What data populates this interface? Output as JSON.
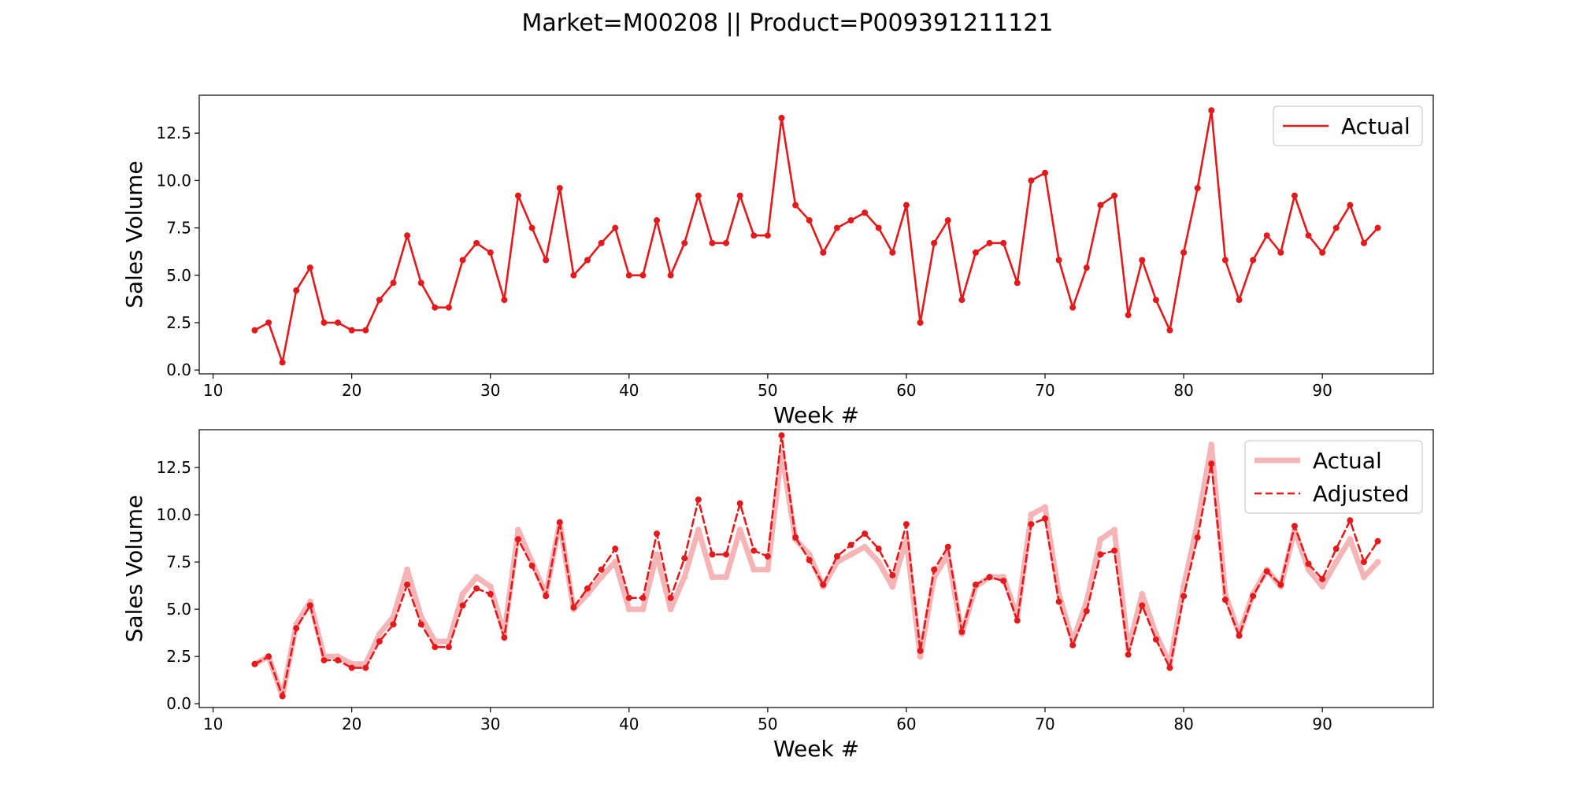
{
  "title": "Market=M00208 || Product=P009391211121",
  "colors": {
    "actual": "#e31a1c",
    "actual_faded": "#f5b5b7",
    "adjusted": "#e31a1c"
  },
  "chart_data": [
    {
      "type": "line",
      "xlabel": "Week #",
      "ylabel": "Sales Volume",
      "xlim": [
        9,
        98
      ],
      "ylim": [
        -0.2,
        14.5
      ],
      "xticks": [
        10,
        20,
        30,
        40,
        50,
        60,
        70,
        80,
        90
      ],
      "yticks": [
        0.0,
        2.5,
        5.0,
        7.5,
        10.0,
        12.5
      ],
      "xtick_labels": [
        "10",
        "20",
        "30",
        "40",
        "50",
        "60",
        "70",
        "80",
        "90"
      ],
      "ytick_labels": [
        "0.0",
        "2.5",
        "5.0",
        "7.5",
        "10.0",
        "12.5"
      ],
      "legend": "top-right",
      "x": [
        13,
        14,
        15,
        16,
        17,
        18,
        19,
        20,
        21,
        22,
        23,
        24,
        25,
        26,
        27,
        28,
        29,
        30,
        31,
        32,
        33,
        34,
        35,
        36,
        37,
        38,
        39,
        40,
        41,
        42,
        43,
        44,
        45,
        46,
        47,
        48,
        49,
        50,
        51,
        52,
        53,
        54,
        55,
        56,
        57,
        58,
        59,
        60,
        61,
        62,
        63,
        64,
        65,
        66,
        67,
        68,
        69,
        70,
        71,
        72,
        73,
        74,
        75,
        76,
        77,
        78,
        79,
        80,
        81,
        82,
        83,
        84,
        85,
        86,
        87,
        88,
        89,
        90,
        91,
        92,
        93,
        94
      ],
      "series": [
        {
          "name": "Actual",
          "style": "solid",
          "values": [
            2.1,
            2.5,
            0.4,
            4.2,
            5.4,
            2.5,
            2.5,
            2.1,
            2.1,
            3.7,
            4.6,
            7.1,
            4.6,
            3.3,
            3.3,
            5.8,
            6.7,
            6.2,
            3.7,
            9.2,
            7.5,
            5.8,
            9.6,
            5.0,
            5.8,
            6.7,
            7.5,
            5.0,
            5.0,
            7.9,
            5.0,
            6.7,
            9.2,
            6.7,
            6.7,
            9.2,
            7.1,
            7.1,
            13.3,
            8.7,
            7.9,
            6.2,
            7.5,
            7.9,
            8.3,
            7.5,
            6.2,
            8.7,
            2.5,
            6.7,
            7.9,
            3.7,
            6.2,
            6.7,
            6.7,
            4.6,
            10.0,
            10.4,
            5.8,
            3.3,
            5.4,
            8.7,
            9.2,
            2.9,
            5.8,
            3.7,
            2.1,
            6.2,
            9.6,
            13.7,
            5.8,
            3.7,
            5.8,
            7.1,
            6.2,
            9.2,
            7.1,
            6.2,
            7.5,
            8.7,
            6.7,
            7.5
          ]
        }
      ]
    },
    {
      "type": "line",
      "xlabel": "Week #",
      "ylabel": "Sales Volume",
      "xlim": [
        9,
        98
      ],
      "ylim": [
        -0.2,
        14.5
      ],
      "xticks": [
        10,
        20,
        30,
        40,
        50,
        60,
        70,
        80,
        90
      ],
      "yticks": [
        0.0,
        2.5,
        5.0,
        7.5,
        10.0,
        12.5
      ],
      "xtick_labels": [
        "10",
        "20",
        "30",
        "40",
        "50",
        "60",
        "70",
        "80",
        "90"
      ],
      "ytick_labels": [
        "0.0",
        "2.5",
        "5.0",
        "7.5",
        "10.0",
        "12.5"
      ],
      "legend": "top-right",
      "x": [
        13,
        14,
        15,
        16,
        17,
        18,
        19,
        20,
        21,
        22,
        23,
        24,
        25,
        26,
        27,
        28,
        29,
        30,
        31,
        32,
        33,
        34,
        35,
        36,
        37,
        38,
        39,
        40,
        41,
        42,
        43,
        44,
        45,
        46,
        47,
        48,
        49,
        50,
        51,
        52,
        53,
        54,
        55,
        56,
        57,
        58,
        59,
        60,
        61,
        62,
        63,
        64,
        65,
        66,
        67,
        68,
        69,
        70,
        71,
        72,
        73,
        74,
        75,
        76,
        77,
        78,
        79,
        80,
        81,
        82,
        83,
        84,
        85,
        86,
        87,
        88,
        89,
        90,
        91,
        92,
        93,
        94
      ],
      "series": [
        {
          "name": "Actual",
          "style": "solid-faded",
          "values": [
            2.1,
            2.5,
            0.4,
            4.2,
            5.4,
            2.5,
            2.5,
            2.1,
            2.1,
            3.7,
            4.6,
            7.1,
            4.6,
            3.3,
            3.3,
            5.8,
            6.7,
            6.2,
            3.7,
            9.2,
            7.5,
            5.8,
            9.6,
            5.0,
            5.8,
            6.7,
            7.5,
            5.0,
            5.0,
            7.9,
            5.0,
            6.7,
            9.2,
            6.7,
            6.7,
            9.2,
            7.1,
            7.1,
            13.3,
            8.7,
            7.9,
            6.2,
            7.5,
            7.9,
            8.3,
            7.5,
            6.2,
            8.7,
            2.5,
            6.7,
            7.9,
            3.7,
            6.2,
            6.7,
            6.7,
            4.6,
            10.0,
            10.4,
            5.8,
            3.3,
            5.4,
            8.7,
            9.2,
            2.9,
            5.8,
            3.7,
            2.1,
            6.2,
            9.6,
            13.7,
            5.8,
            3.7,
            5.8,
            7.1,
            6.2,
            9.2,
            7.1,
            6.2,
            7.5,
            8.7,
            6.7,
            7.5
          ]
        },
        {
          "name": "Adjusted",
          "style": "dashed",
          "values": [
            2.1,
            2.5,
            0.4,
            4.0,
            5.2,
            2.3,
            2.3,
            1.9,
            1.9,
            3.3,
            4.2,
            6.3,
            4.2,
            3.0,
            3.0,
            5.2,
            6.1,
            5.8,
            3.5,
            8.7,
            7.3,
            5.7,
            9.6,
            5.1,
            6.1,
            7.1,
            8.2,
            5.6,
            5.6,
            9.0,
            5.6,
            7.7,
            10.8,
            7.9,
            7.9,
            10.6,
            8.1,
            7.8,
            14.2,
            8.8,
            7.6,
            6.3,
            7.8,
            8.4,
            9.0,
            8.2,
            6.8,
            9.5,
            2.8,
            7.1,
            8.3,
            3.8,
            6.3,
            6.7,
            6.5,
            4.4,
            9.5,
            9.8,
            5.4,
            3.1,
            4.9,
            7.9,
            8.1,
            2.6,
            5.2,
            3.4,
            1.9,
            5.7,
            8.8,
            12.7,
            5.5,
            3.6,
            5.7,
            7.0,
            6.3,
            9.4,
            7.4,
            6.6,
            8.2,
            9.7,
            7.5,
            8.6
          ]
        }
      ]
    }
  ]
}
